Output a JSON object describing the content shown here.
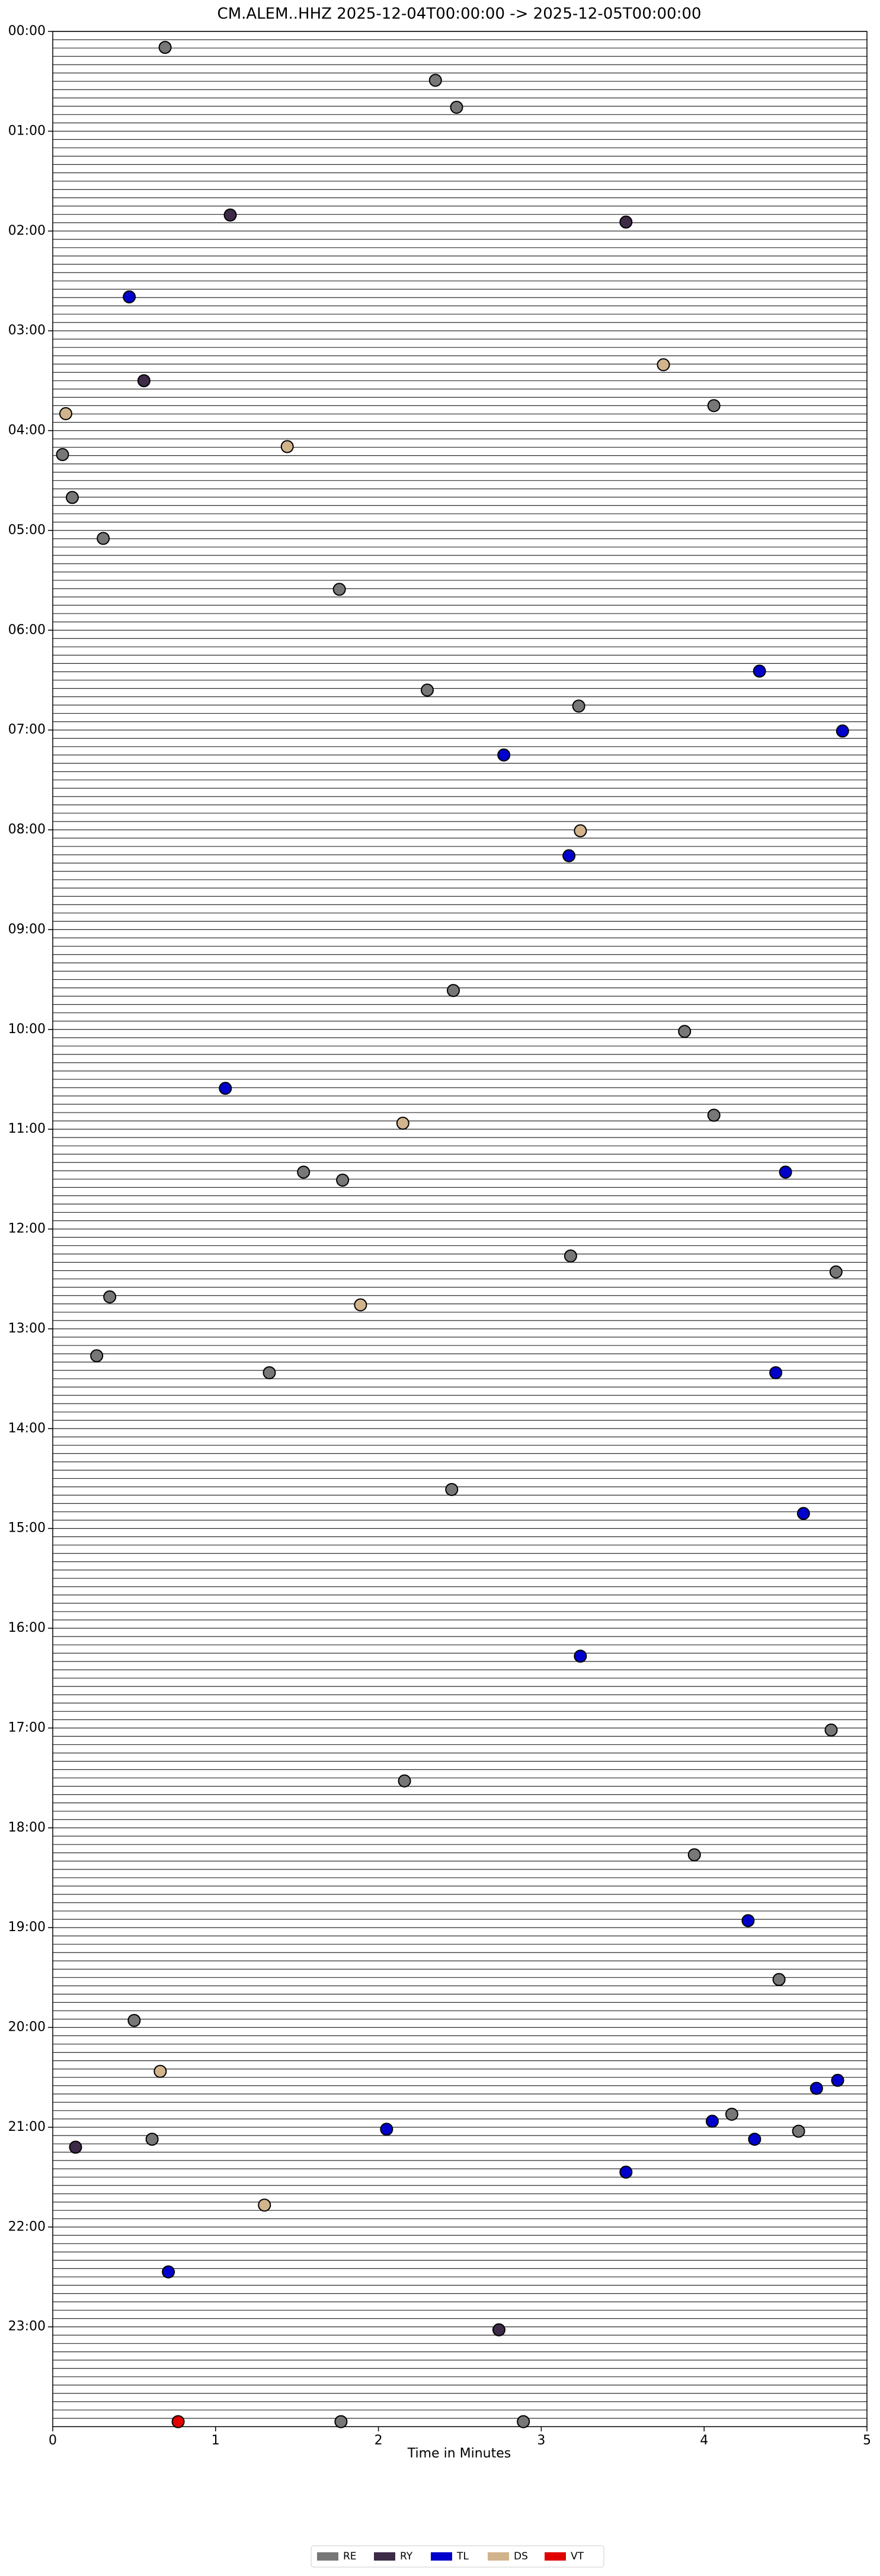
{
  "chart_data": {
    "type": "helicorder",
    "title": "CM.ALEM..HHZ  2025-12-04T00:00:00 -> 2025-12-05T00:00:00",
    "xlabel": "Time in Minutes",
    "xlim": [
      0,
      5
    ],
    "xticks": [
      0,
      1,
      2,
      3,
      4,
      5
    ],
    "ylim": [
      24,
      0
    ],
    "yticks": [
      {
        "value": 0,
        "label": "00:00"
      },
      {
        "value": 1,
        "label": "01:00"
      },
      {
        "value": 2,
        "label": "02:00"
      },
      {
        "value": 3,
        "label": "03:00"
      },
      {
        "value": 4,
        "label": "04:00"
      },
      {
        "value": 5,
        "label": "05:00"
      },
      {
        "value": 6,
        "label": "06:00"
      },
      {
        "value": 7,
        "label": "07:00"
      },
      {
        "value": 8,
        "label": "08:00"
      },
      {
        "value": 9,
        "label": "09:00"
      },
      {
        "value": 10,
        "label": "10:00"
      },
      {
        "value": 11,
        "label": "11:00"
      },
      {
        "value": 12,
        "label": "12:00"
      },
      {
        "value": 13,
        "label": "13:00"
      },
      {
        "value": 14,
        "label": "14:00"
      },
      {
        "value": 15,
        "label": "15:00"
      },
      {
        "value": 16,
        "label": "16:00"
      },
      {
        "value": 17,
        "label": "17:00"
      },
      {
        "value": 18,
        "label": "18:00"
      },
      {
        "value": 19,
        "label": "19:00"
      },
      {
        "value": 20,
        "label": "20:00"
      },
      {
        "value": 21,
        "label": "21:00"
      },
      {
        "value": 22,
        "label": "22:00"
      },
      {
        "value": 23,
        "label": "23:00"
      }
    ],
    "legend": "lower center",
    "series": [
      {
        "name": "RE",
        "color": "#777777",
        "x": [
          0.69,
          2.35,
          2.48,
          4.06,
          0.06,
          0.12,
          0.31,
          1.76,
          2.3,
          3.23,
          2.46,
          3.88,
          4.06,
          1.54,
          1.78,
          3.18,
          4.81,
          0.35,
          0.27,
          1.33,
          2.45,
          4.78,
          2.16,
          3.94,
          4.46,
          0.5,
          4.17,
          0.61,
          4.58,
          1.77,
          2.89
        ],
        "values": [
          0.16,
          0.49,
          0.76,
          3.75,
          4.24,
          4.67,
          5.08,
          5.59,
          6.6,
          6.76,
          9.61,
          10.02,
          10.86,
          11.43,
          11.51,
          12.27,
          12.43,
          12.68,
          13.27,
          13.44,
          14.61,
          17.02,
          17.53,
          18.27,
          19.52,
          19.93,
          20.87,
          21.12,
          21.04,
          23.95,
          23.95
        ]
      },
      {
        "name": "RY",
        "color": "#3d2b48",
        "x": [
          1.09,
          3.52,
          0.56,
          0.14,
          2.74
        ],
        "values": [
          1.84,
          1.91,
          3.5,
          21.2,
          23.03
        ]
      },
      {
        "name": "TL",
        "color": "#0000cc",
        "x": [
          0.47,
          4.34,
          4.85,
          2.77,
          3.17,
          1.06,
          4.5,
          4.44,
          4.61,
          3.24,
          4.27,
          4.82,
          4.69,
          4.05,
          4.31,
          2.05,
          3.52,
          0.71
        ],
        "values": [
          2.66,
          6.41,
          7.01,
          7.25,
          8.26,
          10.59,
          11.43,
          13.44,
          14.85,
          16.28,
          18.93,
          20.53,
          20.61,
          20.94,
          21.12,
          21.02,
          21.45,
          22.45
        ]
      },
      {
        "name": "DS",
        "color": "#d2b48c",
        "x": [
          3.75,
          0.08,
          1.44,
          3.24,
          2.15,
          1.89,
          0.66,
          1.3
        ],
        "values": [
          3.34,
          3.83,
          4.16,
          8.01,
          10.94,
          12.76,
          20.44,
          21.78
        ]
      },
      {
        "name": "VT",
        "color": "#e00000",
        "x": [
          0.77
        ],
        "values": [
          23.95
        ]
      }
    ]
  }
}
